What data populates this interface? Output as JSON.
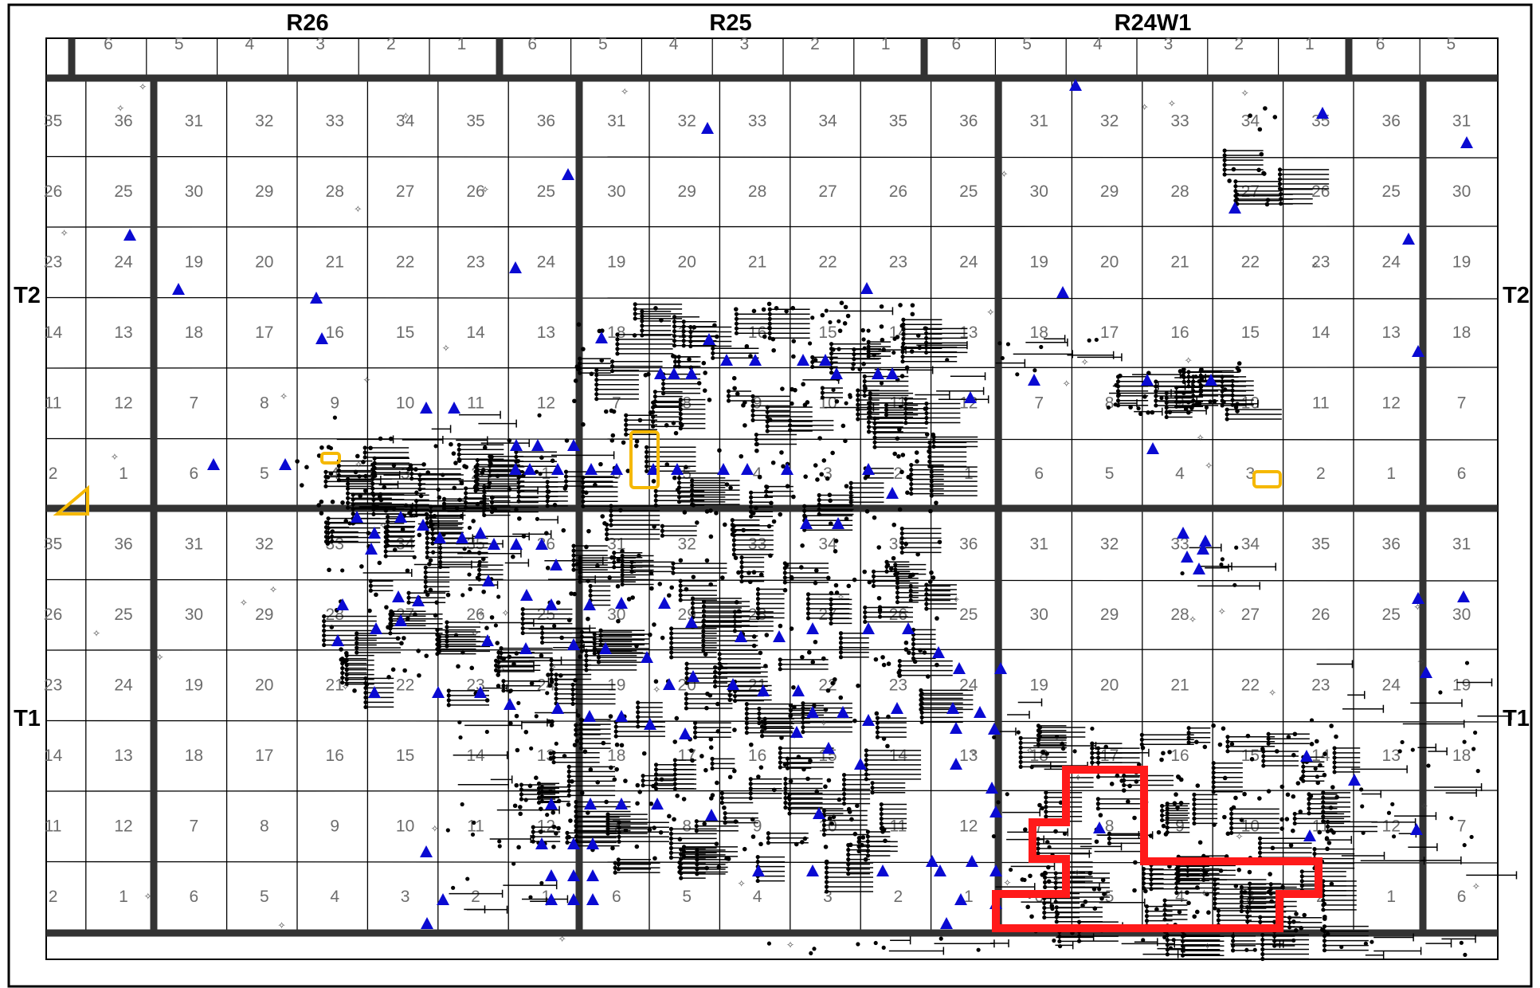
{
  "range_labels": [
    "R26",
    "R25",
    "R24W1"
  ],
  "township_labels": [
    "T2",
    "T1"
  ],
  "top_strip_sections": [
    "6",
    "5",
    "4",
    "3",
    "2",
    "1",
    "6",
    "5",
    "4",
    "3",
    "2",
    "1",
    "6",
    "5",
    "4",
    "3",
    "2",
    "1",
    "6",
    "5"
  ],
  "section_rows": [
    [
      "35",
      "36",
      "31",
      "32",
      "33",
      "34",
      "35",
      "36",
      "31",
      "32",
      "33",
      "34",
      "35",
      "36",
      "31",
      "32",
      "33",
      "34",
      "35",
      "36",
      "31"
    ],
    [
      "26",
      "25",
      "30",
      "29",
      "28",
      "27",
      "26",
      "25",
      "30",
      "29",
      "28",
      "27",
      "26",
      "25",
      "30",
      "29",
      "28",
      "27",
      "26",
      "25",
      "30"
    ],
    [
      "23",
      "24",
      "19",
      "20",
      "21",
      "22",
      "23",
      "24",
      "19",
      "20",
      "21",
      "22",
      "23",
      "24",
      "19",
      "20",
      "21",
      "22",
      "23",
      "24",
      "19"
    ],
    [
      "14",
      "13",
      "18",
      "17",
      "16",
      "15",
      "14",
      "13",
      "18",
      "17",
      "16",
      "15",
      "14",
      "13",
      "18",
      "17",
      "16",
      "15",
      "14",
      "13",
      "18"
    ],
    [
      "11",
      "12",
      "7",
      "8",
      "9",
      "10",
      "11",
      "12",
      "7",
      "8",
      "9",
      "10",
      "11",
      "12",
      "7",
      "8",
      "9",
      "10",
      "11",
      "12",
      "7"
    ],
    [
      "2",
      "1",
      "6",
      "5",
      "4",
      "3",
      "2",
      "1",
      "6",
      "5",
      "4",
      "3",
      "2",
      "1",
      "6",
      "5",
      "4",
      "3",
      "2",
      "1",
      "6"
    ],
    [
      "35",
      "36",
      "31",
      "32",
      "33",
      "34",
      "35",
      "36",
      "31",
      "32",
      "33",
      "34",
      "35",
      "36",
      "31",
      "32",
      "33",
      "34",
      "35",
      "36",
      "31"
    ],
    [
      "26",
      "25",
      "30",
      "29",
      "28",
      "27",
      "26",
      "25",
      "30",
      "29",
      "28",
      "27",
      "26",
      "25",
      "30",
      "29",
      "28",
      "27",
      "26",
      "25",
      "30"
    ],
    [
      "23",
      "24",
      "19",
      "20",
      "21",
      "22",
      "23",
      "24",
      "19",
      "20",
      "21",
      "22",
      "23",
      "24",
      "19",
      "20",
      "21",
      "22",
      "23",
      "24",
      "19"
    ],
    [
      "14",
      "13",
      "18",
      "17",
      "16",
      "15",
      "14",
      "13",
      "18",
      "17",
      "16",
      "15",
      "14",
      "13",
      "18",
      "17",
      "16",
      "15",
      "14",
      "13",
      "18"
    ],
    [
      "11",
      "12",
      "7",
      "8",
      "9",
      "10",
      "11",
      "12",
      "7",
      "8",
      "9",
      "10",
      "11",
      "12",
      "7",
      "8",
      "9",
      "10",
      "11",
      "12",
      "7"
    ],
    [
      "2",
      "1",
      "6",
      "5",
      "4",
      "3",
      "2",
      "1",
      "6",
      "5",
      "4",
      "3",
      "2",
      "1",
      "6",
      "5",
      "4",
      "3",
      "2",
      "1",
      "6"
    ]
  ],
  "colors": {
    "grid_line": "#000000",
    "section_text": "#6d6d6d",
    "well_triangle": "#0a0ad2",
    "project_outline": "#ff1a1a",
    "highlight_outline": "#f5b800",
    "well_symbol": "#000000"
  },
  "legend_symbols": [
    "blue-triangle-well",
    "black-dot-well",
    "dry-hole-star",
    "directional-well-path",
    "project-area-outline",
    "highlight-parcel"
  ]
}
